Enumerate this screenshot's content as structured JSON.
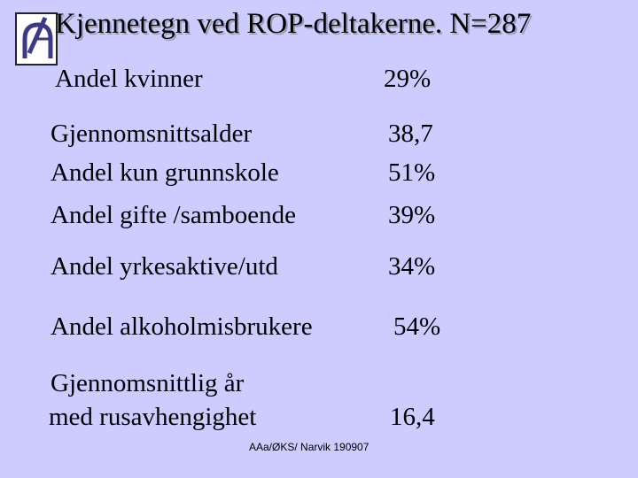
{
  "logo": {
    "icon": "organization-logo-icon"
  },
  "title": "Kjennetegn ved  ROP-deltakerne. N=287",
  "rows": [
    {
      "label": "Andel kvinner",
      "value": "29%"
    },
    {
      "label": "Gjennomsnittsalder",
      "value": "38,7"
    },
    {
      "label": "Andel kun grunnskole",
      "value": "51%"
    },
    {
      "label": "Andel gifte /samboende",
      "value": "39%"
    },
    {
      "label": "Andel yrkesaktive/utd",
      "value": "34%"
    },
    {
      "label": "Andel alkoholmisbrukere",
      "value": "54%"
    },
    {
      "label_line1": "Gjennomsnittlig år",
      "label_line2": "med  rusavhengighet",
      "value": "16,4"
    }
  ],
  "footer": "AAa/ØKS/ Narvik 190907"
}
